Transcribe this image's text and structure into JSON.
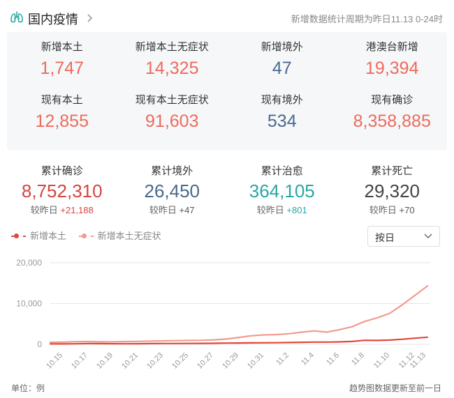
{
  "header": {
    "title": "国内疫情",
    "period_note": "新增数据统计周期为昨日11.13 0-24时"
  },
  "stats_row1": [
    {
      "label": "新增本土",
      "value": "1,747",
      "color": "#ef6a5c"
    },
    {
      "label": "新增本土无症状",
      "value": "14,325",
      "color": "#ef6a5c"
    },
    {
      "label": "新增境外",
      "value": "47",
      "color": "#4a6a8c"
    },
    {
      "label": "港澳台新增",
      "value": "19,394",
      "color": "#ef6a5c"
    }
  ],
  "stats_row2": [
    {
      "label": "现有本土",
      "value": "12,855",
      "color": "#ef6a5c"
    },
    {
      "label": "现有本土无症状",
      "value": "91,603",
      "color": "#ef6a5c"
    },
    {
      "label": "现有境外",
      "value": "534",
      "color": "#4a6a8c"
    },
    {
      "label": "现有确诊",
      "value": "8,358,885",
      "color": "#ef6a5c"
    }
  ],
  "totals": [
    {
      "label": "累计确诊",
      "value": "8,752,310",
      "cmp_label": "较昨日",
      "cmp_value": "+21,188",
      "color": "#d24540"
    },
    {
      "label": "累计境外",
      "value": "26,450",
      "cmp_label": "较昨日",
      "cmp_value": "+47",
      "color": "#4a6a8c"
    },
    {
      "label": "累计治愈",
      "value": "364,105",
      "cmp_label": "较昨日",
      "cmp_value": "+801",
      "color": "#2aa7a2"
    },
    {
      "label": "累计死亡",
      "value": "29,320",
      "cmp_label": "较昨日",
      "cmp_value": "+70",
      "color": "#444444"
    }
  ],
  "legend": [
    {
      "name": "新增本土",
      "color": "#e0483b"
    },
    {
      "name": "新增本土无症状",
      "color": "#f29a8e"
    }
  ],
  "select": {
    "value": "按日"
  },
  "footer": {
    "unit": "单位：例",
    "note": "趋势图数据更新至前一日"
  },
  "chart_data": {
    "type": "line",
    "x": [
      "10.14",
      "10.15",
      "10.16",
      "10.17",
      "10.18",
      "10.19",
      "10.20",
      "10.21",
      "10.22",
      "10.23",
      "10.24",
      "10.25",
      "10.26",
      "10.27",
      "10.28",
      "10.29",
      "10.30",
      "10.31",
      "11.1",
      "11.2",
      "11.3",
      "11.4",
      "11.5",
      "11.6",
      "11.7",
      "11.8",
      "11.9",
      "11.10",
      "11.11",
      "11.12",
      "11.13"
    ],
    "x_tick_labels": [
      "10.15",
      "10.17",
      "10.19",
      "10.21",
      "10.23",
      "10.25",
      "10.27",
      "10.29",
      "10.31",
      "11.2",
      "11.4",
      "11.6",
      "11.8",
      "11.10",
      "11.12",
      "11.13"
    ],
    "series": [
      {
        "name": "新增本土",
        "color": "#e0483b",
        "values": [
          100,
          110,
          140,
          180,
          170,
          150,
          140,
          160,
          180,
          200,
          210,
          230,
          240,
          260,
          300,
          330,
          360,
          380,
          400,
          450,
          500,
          550,
          540,
          600,
          700,
          1000,
          950,
          1050,
          1250,
          1500,
          1747
        ]
      },
      {
        "name": "新增本土无症状",
        "color": "#f29a8e",
        "values": [
          500,
          550,
          650,
          700,
          620,
          640,
          680,
          720,
          800,
          850,
          900,
          950,
          1000,
          1100,
          1300,
          1700,
          2100,
          2300,
          2400,
          2600,
          3000,
          3300,
          3000,
          3600,
          4300,
          5600,
          6500,
          7600,
          9700,
          12000,
          14325
        ]
      }
    ],
    "yticks": [
      "20,000",
      "10,000",
      "0"
    ],
    "ylim": [
      0,
      20000
    ],
    "grid": true
  }
}
